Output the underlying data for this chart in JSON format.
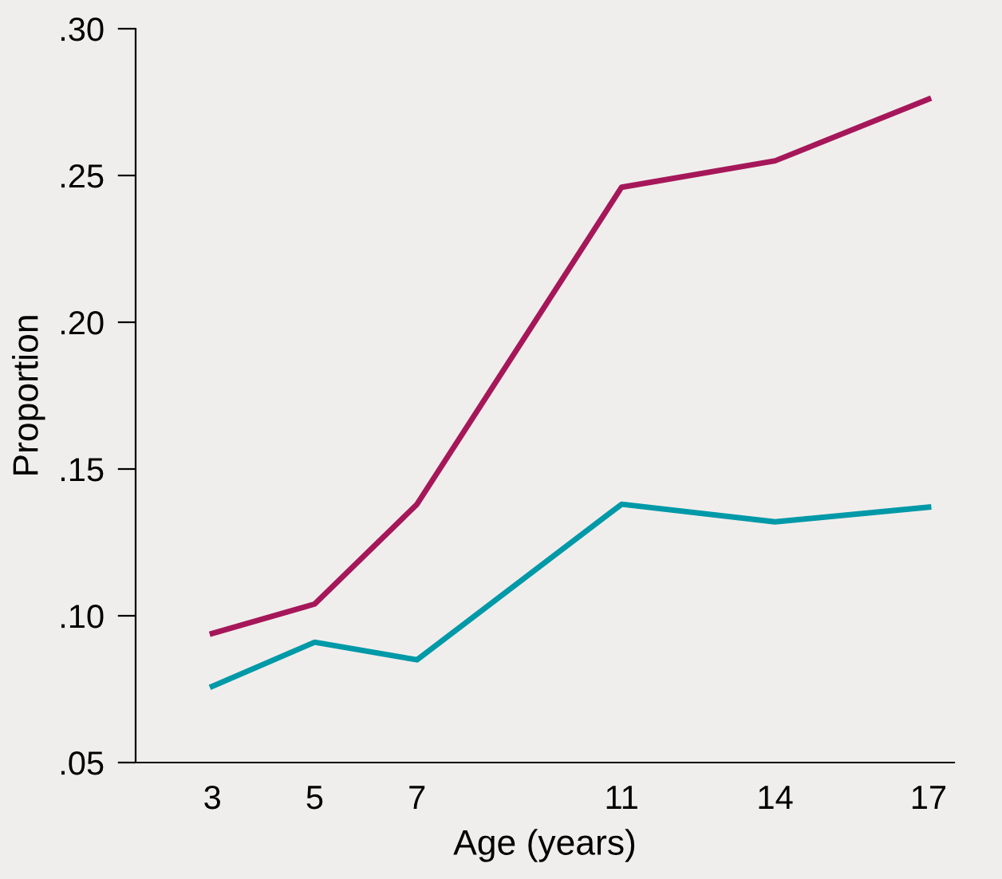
{
  "chart_data": {
    "type": "line",
    "xlabel": "Age (years)",
    "ylabel": "Proportion",
    "x": [
      3,
      5,
      7,
      11,
      14,
      17
    ],
    "series": [
      {
        "color": "#a6175a",
        "values": [
          0.094,
          0.104,
          0.138,
          0.246,
          0.255,
          0.276
        ]
      },
      {
        "color": "#0099a8",
        "values": [
          0.076,
          0.091,
          0.085,
          0.138,
          0.132,
          0.137
        ]
      }
    ],
    "xlim": [
      1.5,
      17.5
    ],
    "ylim": [
      0.05,
      0.3
    ],
    "xticks": [
      3,
      5,
      7,
      11,
      14,
      17
    ],
    "yticks": [
      {
        "value": 0.05,
        "label": ".05"
      },
      {
        "value": 0.1,
        "label": ".10"
      },
      {
        "value": 0.15,
        "label": ".15"
      },
      {
        "value": 0.2,
        "label": ".20"
      },
      {
        "value": 0.25,
        "label": ".25"
      },
      {
        "value": 0.3,
        "label": ".30"
      }
    ],
    "grid": false,
    "legend": false,
    "line_style": "solid",
    "marker": "none"
  }
}
